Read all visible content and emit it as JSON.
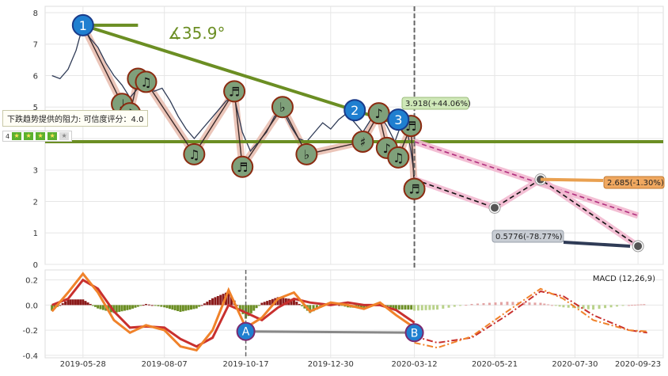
{
  "chart_data": [
    {
      "type": "line",
      "panel": "price",
      "ylim": [
        0,
        8.2
      ],
      "yticks": [
        0,
        1,
        2,
        3,
        4,
        5,
        6,
        7,
        8
      ],
      "xlim": [
        "2019-04-25",
        "2020-10-15"
      ],
      "xticks": [
        "2019-05-28",
        "2019-08-07",
        "2019-10-17",
        "2019-12-30",
        "2020-03-12",
        "2020-05-21",
        "2020-07-30",
        "2020-09-23"
      ],
      "grid": true,
      "price_series": [
        {
          "x": "2019-05-01",
          "y": 6.0
        },
        {
          "x": "2019-05-08",
          "y": 5.9
        },
        {
          "x": "2019-05-15",
          "y": 6.2
        },
        {
          "x": "2019-05-22",
          "y": 6.8
        },
        {
          "x": "2019-05-28",
          "y": 7.6
        },
        {
          "x": "2019-06-03",
          "y": 7.2
        },
        {
          "x": "2019-06-10",
          "y": 6.9
        },
        {
          "x": "2019-06-17",
          "y": 6.4
        },
        {
          "x": "2019-06-24",
          "y": 6.0
        },
        {
          "x": "2019-07-01",
          "y": 5.7
        },
        {
          "x": "2019-07-08",
          "y": 5.3
        },
        {
          "x": "2019-07-15",
          "y": 5.6
        },
        {
          "x": "2019-07-22",
          "y": 5.9
        },
        {
          "x": "2019-07-29",
          "y": 5.5
        },
        {
          "x": "2019-08-05",
          "y": 5.6
        },
        {
          "x": "2019-08-12",
          "y": 5.2
        },
        {
          "x": "2019-08-19",
          "y": 4.7
        },
        {
          "x": "2019-08-26",
          "y": 4.3
        },
        {
          "x": "2019-09-02",
          "y": 4.0
        },
        {
          "x": "2019-09-09",
          "y": 4.3
        },
        {
          "x": "2019-09-16",
          "y": 4.6
        },
        {
          "x": "2019-09-23",
          "y": 4.9
        },
        {
          "x": "2019-09-30",
          "y": 5.2
        },
        {
          "x": "2019-10-07",
          "y": 5.3
        },
        {
          "x": "2019-10-14",
          "y": 4.2
        },
        {
          "x": "2019-10-21",
          "y": 3.6
        },
        {
          "x": "2019-10-28",
          "y": 3.9
        },
        {
          "x": "2019-11-04",
          "y": 4.2
        },
        {
          "x": "2019-11-11",
          "y": 4.7
        },
        {
          "x": "2019-11-18",
          "y": 4.9
        },
        {
          "x": "2019-11-25",
          "y": 4.4
        },
        {
          "x": "2019-12-02",
          "y": 4.0
        },
        {
          "x": "2019-12-09",
          "y": 3.9
        },
        {
          "x": "2019-12-16",
          "y": 4.2
        },
        {
          "x": "2019-12-23",
          "y": 4.5
        },
        {
          "x": "2019-12-30",
          "y": 4.3
        },
        {
          "x": "2020-01-06",
          "y": 4.6
        },
        {
          "x": "2020-01-13",
          "y": 4.8
        },
        {
          "x": "2020-01-20",
          "y": 4.5
        },
        {
          "x": "2020-01-27",
          "y": 4.2
        },
        {
          "x": "2020-02-03",
          "y": 4.6
        },
        {
          "x": "2020-02-10",
          "y": 4.8
        },
        {
          "x": "2020-02-17",
          "y": 4.4
        },
        {
          "x": "2020-02-24",
          "y": 3.9
        },
        {
          "x": "2020-03-02",
          "y": 4.6
        },
        {
          "x": "2020-03-06",
          "y": 4.2
        },
        {
          "x": "2020-03-09",
          "y": 3.6
        },
        {
          "x": "2020-03-12",
          "y": 2.8
        }
      ],
      "trendlines": [
        {
          "name": "resistance",
          "color": "#6b8e23",
          "points": [
            {
              "x": "2019-05-28",
              "y": 7.6
            },
            {
              "x": "2020-03-12",
              "y": 4.3
            }
          ]
        },
        {
          "name": "horizontal",
          "color": "#6b8e23",
          "points": [
            {
              "x": "2019-04-25",
              "y": 3.9
            },
            {
              "x": "2020-10-15",
              "y": 3.9
            }
          ]
        },
        {
          "name": "top-segment",
          "color": "#6b8e23",
          "points": [
            {
              "x": "2019-05-28",
              "y": 7.6
            },
            {
              "x": "2019-07-15",
              "y": 7.6
            }
          ]
        }
      ],
      "projections": [
        {
          "style": "dashed-pink",
          "points": [
            {
              "x": "2020-03-12",
              "y": 3.9
            },
            {
              "x": "2020-09-23",
              "y": 1.55
            }
          ]
        },
        {
          "style": "dashed-black",
          "points": [
            {
              "x": "2020-03-12",
              "y": 2.7
            },
            {
              "x": "2020-05-21",
              "y": 1.8
            },
            {
              "x": "2020-06-30",
              "y": 2.7
            },
            {
              "x": "2020-09-23",
              "y": 0.58
            }
          ]
        }
      ],
      "markers": [
        {
          "label": "1",
          "x": "2019-05-28",
          "y": 7.6
        },
        {
          "label": "2",
          "x": "2020-01-20",
          "y": 4.9
        },
        {
          "label": "3",
          "x": "2020-02-27",
          "y": 4.6
        }
      ],
      "notes": [
        {
          "symbol": "♩",
          "x": "2019-07-01",
          "y": 5.1
        },
        {
          "symbol": "♪",
          "x": "2019-07-08",
          "y": 4.8
        },
        {
          "symbol": "♪",
          "x": "2019-07-15",
          "y": 5.9
        },
        {
          "symbol": "♫",
          "x": "2019-07-22",
          "y": 5.8
        },
        {
          "symbol": "♫",
          "x": "2019-09-02",
          "y": 3.5
        },
        {
          "symbol": "♬",
          "x": "2019-10-07",
          "y": 5.5
        },
        {
          "symbol": "♬",
          "x": "2019-10-14",
          "y": 3.1
        },
        {
          "symbol": "♭",
          "x": "2019-11-18",
          "y": 5.0
        },
        {
          "symbol": "♭",
          "x": "2019-12-09",
          "y": 3.5
        },
        {
          "symbol": "♯",
          "x": "2020-01-27",
          "y": 3.9
        },
        {
          "symbol": "♪",
          "x": "2020-02-10",
          "y": 4.8
        },
        {
          "symbol": "♪",
          "x": "2020-02-17",
          "y": 3.7
        },
        {
          "symbol": "♫",
          "x": "2020-02-27",
          "y": 3.4
        },
        {
          "symbol": "♬",
          "x": "2020-03-09",
          "y": 4.4
        },
        {
          "symbol": "♬",
          "x": "2020-03-12",
          "y": 2.4
        }
      ],
      "annotations": {
        "angle": "∡35.9°",
        "peak_label": "3.918(+44.06%)",
        "target_up": "2.685(-1.30%)",
        "target_down": "0.5776(-78.77%)",
        "tooltip": "下跌趋势提供的阻力: 可信度评分：4.0",
        "rating_value": "4",
        "rating_stars": 4,
        "rating_max": 5
      }
    },
    {
      "type": "bar",
      "panel": "macd",
      "title": "MACD (12,26,9)",
      "ylim": [
        -0.42,
        0.28
      ],
      "yticks": [
        -0.4,
        -0.2,
        0.0,
        0.2
      ],
      "markers": [
        {
          "label": "A",
          "x": "2019-10-17",
          "y": -0.21
        },
        {
          "label": "B",
          "x": "2020-03-12",
          "y": -0.22
        }
      ],
      "macd_line": [
        {
          "x": "2019-05-01",
          "y": -0.05
        },
        {
          "x": "2019-05-15",
          "y": 0.1
        },
        {
          "x": "2019-05-28",
          "y": 0.25
        },
        {
          "x": "2019-06-10",
          "y": 0.1
        },
        {
          "x": "2019-06-24",
          "y": -0.12
        },
        {
          "x": "2019-07-08",
          "y": -0.22
        },
        {
          "x": "2019-07-22",
          "y": -0.16
        },
        {
          "x": "2019-08-07",
          "y": -0.2
        },
        {
          "x": "2019-08-21",
          "y": -0.33
        },
        {
          "x": "2019-09-04",
          "y": -0.36
        },
        {
          "x": "2019-09-18",
          "y": -0.2
        },
        {
          "x": "2019-10-02",
          "y": 0.12
        },
        {
          "x": "2019-10-17",
          "y": -0.18
        },
        {
          "x": "2019-10-31",
          "y": -0.1
        },
        {
          "x": "2019-11-14",
          "y": 0.05
        },
        {
          "x": "2019-11-28",
          "y": 0.1
        },
        {
          "x": "2019-12-12",
          "y": -0.05
        },
        {
          "x": "2019-12-30",
          "y": 0.02
        },
        {
          "x": "2020-01-14",
          "y": 0.0
        },
        {
          "x": "2020-01-28",
          "y": -0.03
        },
        {
          "x": "2020-02-11",
          "y": 0.02
        },
        {
          "x": "2020-02-25",
          "y": -0.08
        },
        {
          "x": "2020-03-12",
          "y": -0.18
        }
      ],
      "signal_line": [
        {
          "x": "2019-05-01",
          "y": 0.0
        },
        {
          "x": "2019-05-15",
          "y": 0.05
        },
        {
          "x": "2019-05-28",
          "y": 0.2
        },
        {
          "x": "2019-06-10",
          "y": 0.13
        },
        {
          "x": "2019-06-24",
          "y": -0.05
        },
        {
          "x": "2019-07-08",
          "y": -0.18
        },
        {
          "x": "2019-07-22",
          "y": -0.17
        },
        {
          "x": "2019-08-07",
          "y": -0.18
        },
        {
          "x": "2019-08-21",
          "y": -0.27
        },
        {
          "x": "2019-09-04",
          "y": -0.33
        },
        {
          "x": "2019-09-18",
          "y": -0.26
        },
        {
          "x": "2019-10-02",
          "y": 0.0
        },
        {
          "x": "2019-10-17",
          "y": -0.06
        },
        {
          "x": "2019-10-31",
          "y": -0.12
        },
        {
          "x": "2019-11-14",
          "y": -0.02
        },
        {
          "x": "2019-11-28",
          "y": 0.05
        },
        {
          "x": "2019-12-12",
          "y": 0.02
        },
        {
          "x": "2019-12-30",
          "y": 0.0
        },
        {
          "x": "2020-01-14",
          "y": 0.02
        },
        {
          "x": "2020-01-28",
          "y": 0.0
        },
        {
          "x": "2020-02-11",
          "y": 0.0
        },
        {
          "x": "2020-02-25",
          "y": -0.04
        },
        {
          "x": "2020-03-12",
          "y": -0.14
        }
      ],
      "proj_macd": [
        {
          "x": "2020-03-12",
          "y": -0.3
        },
        {
          "x": "2020-04-01",
          "y": -0.34
        },
        {
          "x": "2020-05-01",
          "y": -0.25
        },
        {
          "x": "2020-06-01",
          "y": -0.05
        },
        {
          "x": "2020-06-30",
          "y": 0.13
        },
        {
          "x": "2020-07-20",
          "y": 0.05
        },
        {
          "x": "2020-08-15",
          "y": -0.12
        },
        {
          "x": "2020-09-15",
          "y": -0.2
        },
        {
          "x": "2020-10-01",
          "y": -0.21
        }
      ],
      "proj_signal": [
        {
          "x": "2020-03-12",
          "y": -0.25
        },
        {
          "x": "2020-04-01",
          "y": -0.3
        },
        {
          "x": "2020-05-01",
          "y": -0.26
        },
        {
          "x": "2020-06-01",
          "y": -0.08
        },
        {
          "x": "2020-06-30",
          "y": 0.11
        },
        {
          "x": "2020-07-20",
          "y": 0.07
        },
        {
          "x": "2020-08-15",
          "y": -0.08
        },
        {
          "x": "2020-09-15",
          "y": -0.2
        },
        {
          "x": "2020-10-01",
          "y": -0.22
        }
      ],
      "colors": {
        "macd": "#f0822a",
        "signal": "#c8302e",
        "hist_pos": "#8b1a1a",
        "hist_neg": "#6b8e23",
        "hist_proj_pos": "#e3a3a3",
        "hist_proj_neg": "#b9d28a"
      }
    }
  ]
}
